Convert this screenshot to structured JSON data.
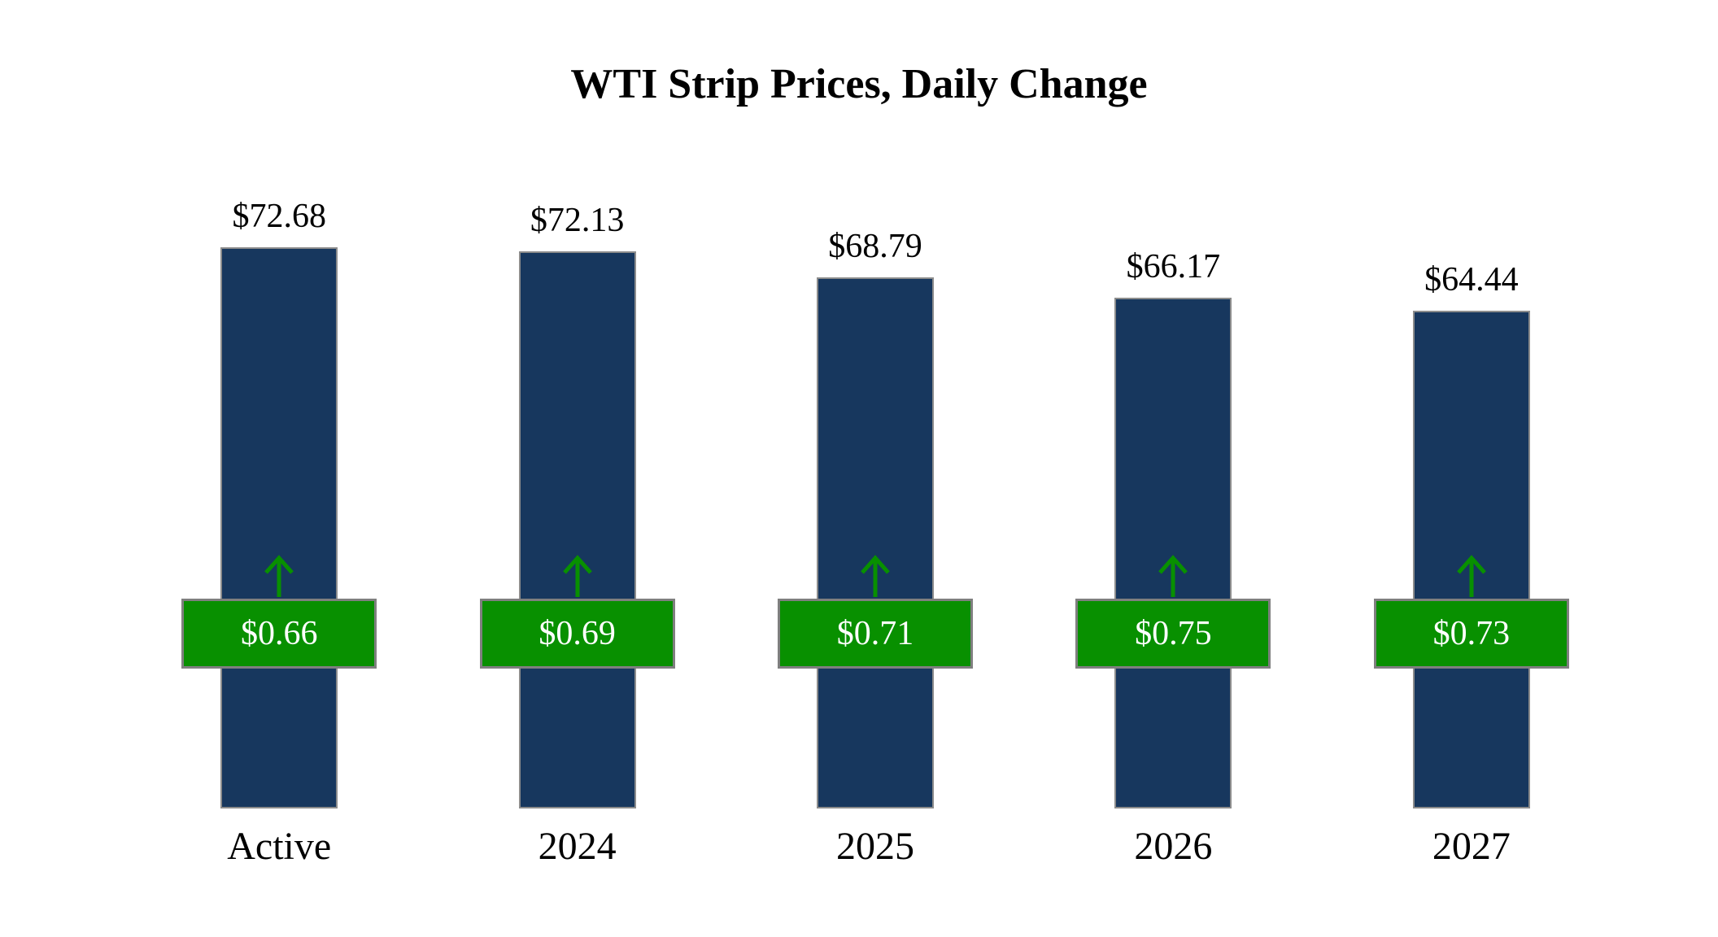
{
  "title": "WTI Strip Prices, Daily Change",
  "chart_data": {
    "type": "bar",
    "title": "WTI Strip Prices, Daily Change",
    "categories": [
      "Active",
      "2024",
      "2025",
      "2026",
      "2027"
    ],
    "values": [
      72.68,
      72.13,
      68.79,
      66.17,
      64.44
    ],
    "price_labels": [
      "$72.68",
      "$72.13",
      "$68.79",
      "$66.17",
      "$64.44"
    ],
    "changes": [
      0.66,
      0.69,
      0.71,
      0.75,
      0.73
    ],
    "change_labels": [
      "$0.66",
      "$0.69",
      "$0.71",
      "$0.75",
      "$0.73"
    ],
    "change_direction": "up",
    "xlabel": "",
    "ylabel": "",
    "ylim": [
      0,
      80
    ],
    "grid": false,
    "legend": false,
    "colors": {
      "bar": "#17375E",
      "change_badge": "#089000",
      "badge_border": "#7f7f7f",
      "badge_text": "#ffffff",
      "arrow": "#089000"
    }
  }
}
